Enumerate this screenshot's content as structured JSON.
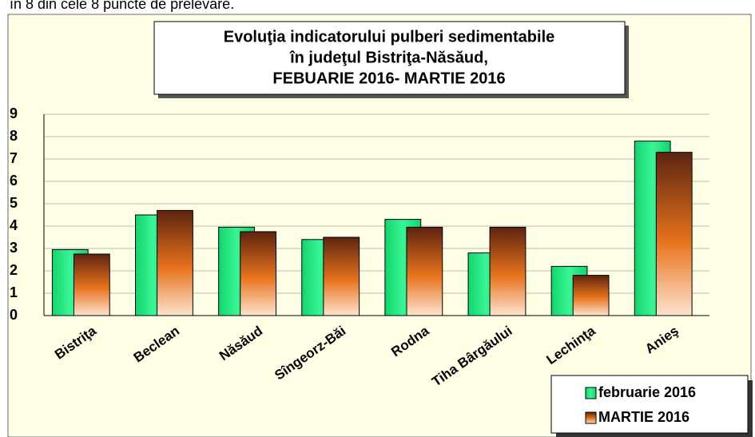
{
  "text_above": "în 8 din cele 8 puncte de prelevare.",
  "chart_data": {
    "type": "bar",
    "title": [
      "Evoluţia indicatorului pulberi sedimentabile",
      "în judeţul Bistriţa-Năsăud,",
      "FEBUARIE 2016- MARTIE 2016"
    ],
    "categories": [
      "Bistriţa",
      "Beclean",
      "Năsăud",
      "Sîngeorz-Băi",
      "Rodna",
      "Tiha Bârgăului",
      "Lechinţa",
      "Anieş"
    ],
    "series": [
      {
        "name": "februarie 2016",
        "color": "#19e67a",
        "values": [
          2.95,
          4.5,
          3.95,
          3.4,
          4.3,
          2.8,
          2.2,
          7.8
        ]
      },
      {
        "name": "MARTIE 2016",
        "color": "#c0561a",
        "values": [
          2.75,
          4.7,
          3.75,
          3.5,
          3.95,
          3.95,
          1.8,
          7.3
        ]
      }
    ],
    "ylim": [
      0,
      9
    ],
    "yticks": [
      0,
      1,
      2,
      3,
      4,
      5,
      6,
      7,
      8,
      9
    ],
    "grid": true,
    "legend": "bottom-right"
  }
}
